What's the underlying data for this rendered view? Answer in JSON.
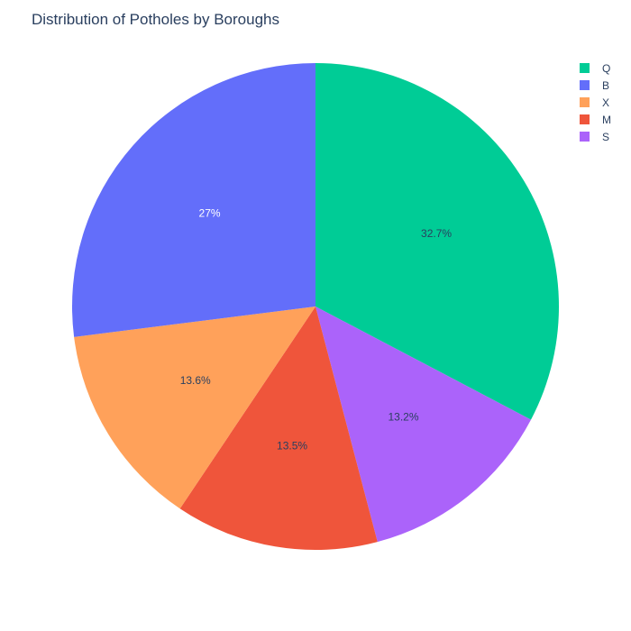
{
  "chart_data": {
    "type": "pie",
    "title": "Distribution of Potholes by Boroughs",
    "slices": [
      {
        "label": "Q",
        "percent": 32.7,
        "display": "32.7%",
        "color": "#00cc96",
        "text_color": "#2a3f5f"
      },
      {
        "label": "S",
        "percent": 13.2,
        "display": "13.2%",
        "color": "#ab63fa",
        "text_color": "#2a3f5f"
      },
      {
        "label": "M",
        "percent": 13.5,
        "display": "13.5%",
        "color": "#ef553b",
        "text_color": "#2a3f5f"
      },
      {
        "label": "X",
        "percent": 13.6,
        "display": "13.6%",
        "color": "#ffa15a",
        "text_color": "#2a3f5f"
      },
      {
        "label": "B",
        "percent": 27.0,
        "display": "27%",
        "color": "#636efa",
        "text_color": "#ffffff"
      }
    ],
    "legend": {
      "position": "top-right",
      "entries": [
        {
          "label": "Q",
          "color": "#00cc96"
        },
        {
          "label": "B",
          "color": "#636efa"
        },
        {
          "label": "X",
          "color": "#ffa15a"
        },
        {
          "label": "M",
          "color": "#ef553b"
        },
        {
          "label": "S",
          "color": "#ab63fa"
        }
      ]
    }
  }
}
